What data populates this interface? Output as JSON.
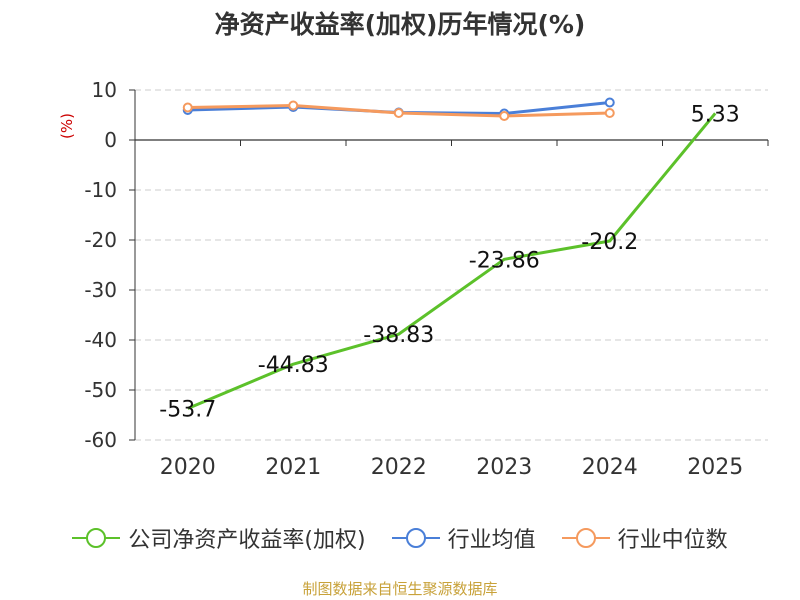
{
  "chart_data": {
    "type": "line",
    "title": "净资产收益率(加权)历年情况(%)",
    "ylabel": "(%)",
    "categories": [
      "2020",
      "2021",
      "2022",
      "2023",
      "2024",
      "2025"
    ],
    "ylim": [
      -60,
      10
    ],
    "yticks": [
      10,
      0,
      -10,
      -20,
      -30,
      -40,
      -50,
      -60
    ],
    "grid": true,
    "legend_position": "bottom",
    "series": [
      {
        "name": "公司净资产收益率(加权)",
        "color": "#5cc12a",
        "values": [
          -53.7,
          -44.83,
          -38.83,
          -23.86,
          -20.2,
          5.33
        ],
        "labels": [
          "-53.7",
          "-44.83",
          "-38.83",
          "-23.86",
          "-20.2",
          "5.33"
        ]
      },
      {
        "name": "行业均值",
        "color": "#4a7fd8",
        "values": [
          6.0,
          6.6,
          5.5,
          5.3,
          7.5,
          null
        ]
      },
      {
        "name": "行业中位数",
        "color": "#f59a5e",
        "values": [
          6.5,
          6.9,
          5.4,
          4.8,
          5.4,
          null
        ]
      }
    ]
  },
  "source_note": "制图数据来自恒生聚源数据库"
}
